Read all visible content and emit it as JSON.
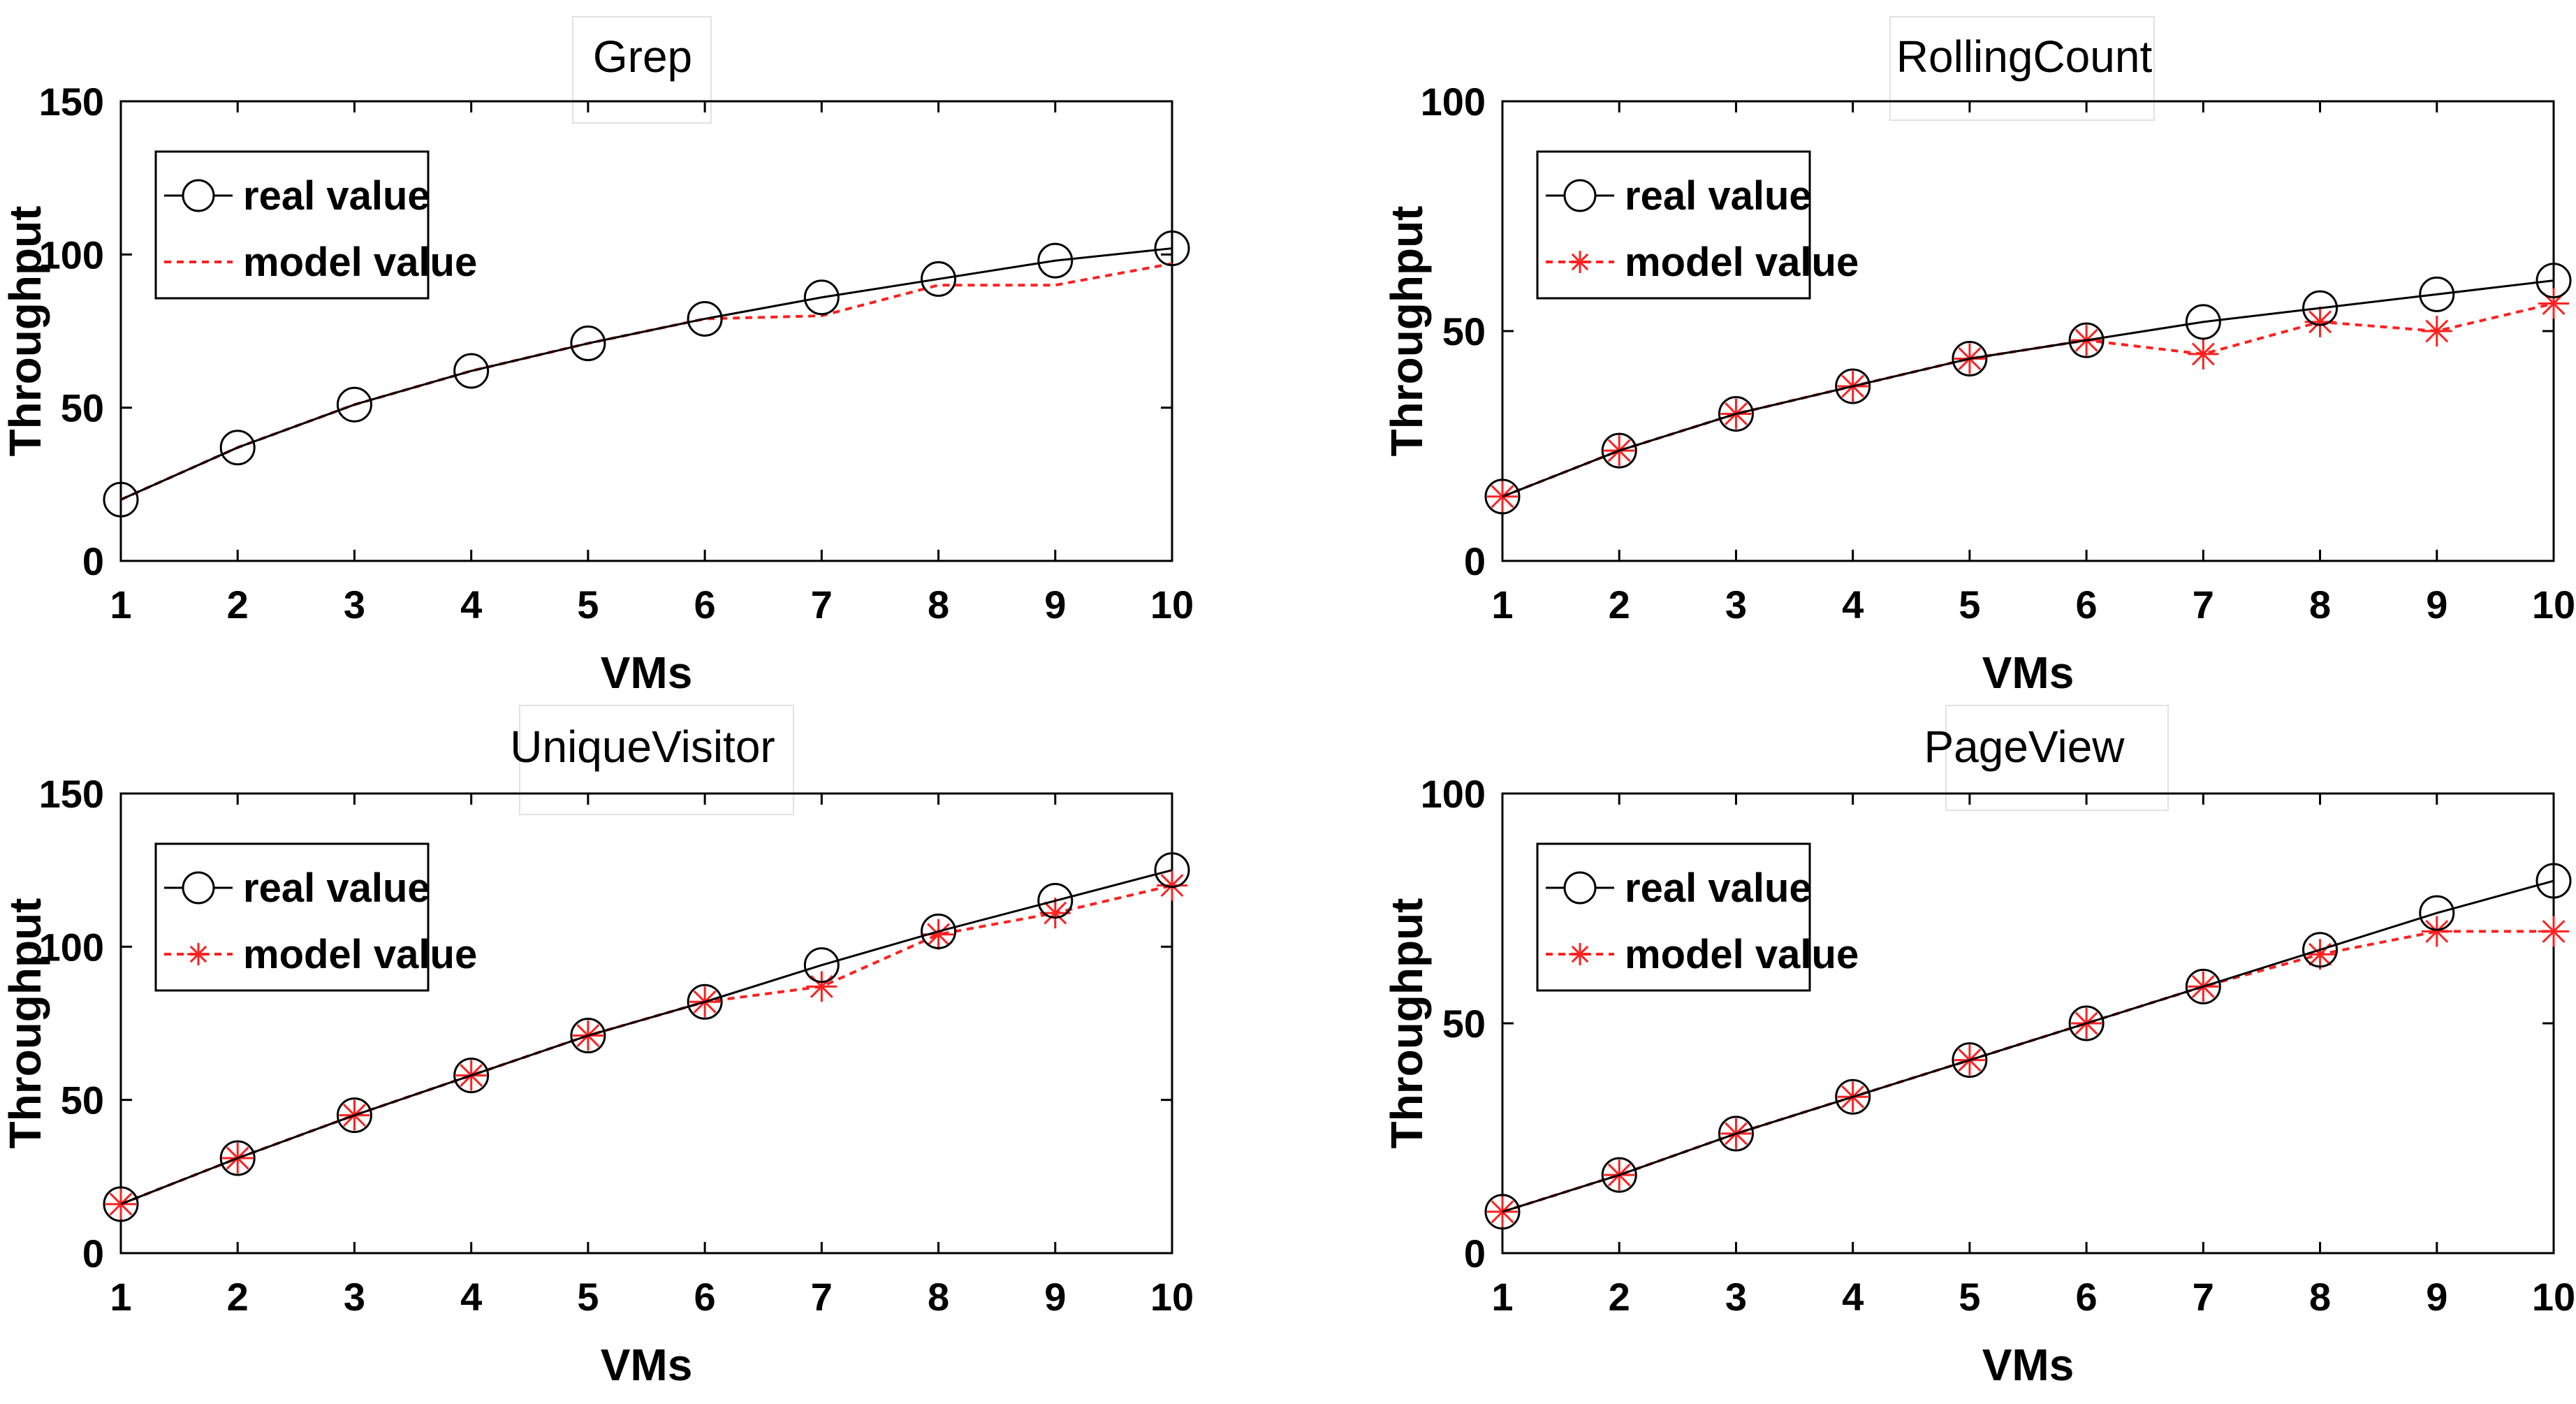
{
  "figure": {
    "colors": {
      "real": "#000000",
      "model": "#ff2020",
      "axis": "#000000",
      "background": "#ffffff"
    },
    "legend": {
      "real_label": "real value",
      "model_label": "model value",
      "placement": "top-left"
    }
  },
  "chart_data": [
    {
      "type": "line",
      "title": "Grep",
      "xlabel": "VMs",
      "ylabel": "Throughput",
      "x": [
        1,
        2,
        3,
        4,
        5,
        6,
        7,
        8,
        9,
        10
      ],
      "xlim": [
        1,
        10
      ],
      "ylim": [
        0,
        150
      ],
      "xticks": [
        1,
        2,
        3,
        4,
        5,
        6,
        7,
        8,
        9,
        10
      ],
      "yticks": [
        0,
        50,
        100,
        150
      ],
      "grid": false,
      "series": [
        {
          "name": "real value",
          "marker": "circle",
          "line": "solid",
          "values": [
            20,
            37,
            51,
            62,
            71,
            79,
            86,
            92,
            98,
            102
          ]
        },
        {
          "name": "model value",
          "marker": "none",
          "line": "dotted",
          "values": [
            20,
            37,
            51,
            62,
            71,
            79,
            80,
            90,
            90,
            97
          ]
        }
      ]
    },
    {
      "type": "line",
      "title": "RollingCount",
      "xlabel": "VMs",
      "ylabel": "Throughput",
      "x": [
        1,
        2,
        3,
        4,
        5,
        6,
        7,
        8,
        9,
        10
      ],
      "xlim": [
        1,
        10
      ],
      "ylim": [
        0,
        100
      ],
      "xticks": [
        1,
        2,
        3,
        4,
        5,
        6,
        7,
        8,
        9,
        10
      ],
      "yticks": [
        0,
        50,
        100
      ],
      "grid": false,
      "series": [
        {
          "name": "real value",
          "marker": "circle",
          "line": "solid",
          "values": [
            14,
            24,
            32,
            38,
            44,
            48,
            52,
            55,
            58,
            61
          ]
        },
        {
          "name": "model value",
          "marker": "star",
          "line": "dotted",
          "values": [
            14,
            24,
            32,
            38,
            44,
            48,
            45,
            52,
            50,
            56
          ]
        }
      ]
    },
    {
      "type": "line",
      "title": "UniqueVisitor",
      "xlabel": "VMs",
      "ylabel": "Throughput",
      "x": [
        1,
        2,
        3,
        4,
        5,
        6,
        7,
        8,
        9,
        10
      ],
      "xlim": [
        1,
        10
      ],
      "ylim": [
        0,
        150
      ],
      "xticks": [
        1,
        2,
        3,
        4,
        5,
        6,
        7,
        8,
        9,
        10
      ],
      "yticks": [
        0,
        50,
        100,
        150
      ],
      "grid": false,
      "series": [
        {
          "name": "real value",
          "marker": "circle",
          "line": "solid",
          "values": [
            16,
            31,
            45,
            58,
            71,
            82,
            94,
            105,
            115,
            125
          ]
        },
        {
          "name": "model value",
          "marker": "star",
          "line": "dotted",
          "values": [
            16,
            31,
            45,
            58,
            71,
            82,
            87,
            104,
            111,
            120
          ]
        }
      ]
    },
    {
      "type": "line",
      "title": "PageView",
      "xlabel": "VMs",
      "ylabel": "Throughput",
      "x": [
        1,
        2,
        3,
        4,
        5,
        6,
        7,
        8,
        9,
        10
      ],
      "xlim": [
        1,
        10
      ],
      "ylim": [
        0,
        100
      ],
      "xticks": [
        1,
        2,
        3,
        4,
        5,
        6,
        7,
        8,
        9,
        10
      ],
      "yticks": [
        0,
        50,
        100
      ],
      "grid": false,
      "series": [
        {
          "name": "real value",
          "marker": "circle",
          "line": "solid",
          "values": [
            9,
            17,
            26,
            34,
            42,
            50,
            58,
            66,
            74,
            81
          ]
        },
        {
          "name": "model value",
          "marker": "star",
          "line": "dotted",
          "values": [
            9,
            17,
            26,
            34,
            42,
            50,
            58,
            65,
            70,
            70
          ]
        }
      ]
    }
  ]
}
